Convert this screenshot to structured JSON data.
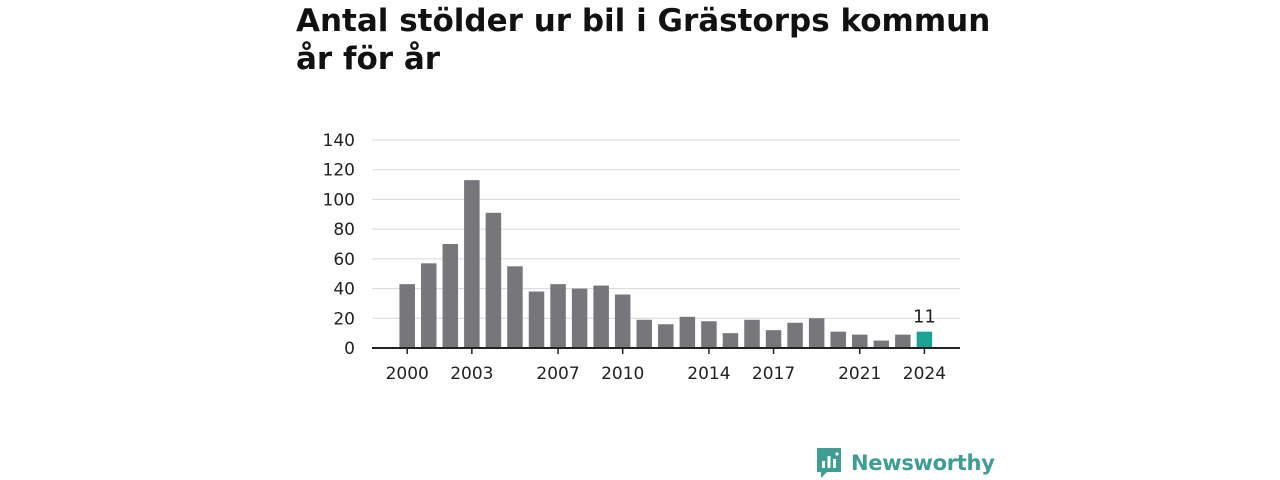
{
  "title_line1": "Antal stölder ur bil i Grästorps kommun",
  "title_line2": "år för år",
  "brand": {
    "name": "Newsworthy",
    "icon": "newsworthy-logo-icon",
    "color": "#3e9e93"
  },
  "chart_data": {
    "type": "bar",
    "categories": [
      "2000",
      "2001",
      "2002",
      "2003",
      "2004",
      "2005",
      "2006",
      "2007",
      "2008",
      "2009",
      "2010",
      "2011",
      "2012",
      "2013",
      "2014",
      "2015",
      "2016",
      "2017",
      "2018",
      "2019",
      "2020",
      "2021",
      "2022",
      "2023",
      "2024"
    ],
    "values": [
      43,
      57,
      70,
      113,
      91,
      55,
      38,
      43,
      40,
      42,
      36,
      19,
      16,
      21,
      18,
      10,
      19,
      12,
      17,
      20,
      11,
      9,
      5,
      9,
      11
    ],
    "x_tick_labels": [
      "2000",
      "2003",
      "2007",
      "2010",
      "2014",
      "2017",
      "2021",
      "2024"
    ],
    "y_ticks": [
      0,
      20,
      40,
      60,
      80,
      100,
      120,
      140
    ],
    "ylim": [
      0,
      140
    ],
    "grid": true,
    "highlight": {
      "category": "2024",
      "label": "11",
      "color": "#1aa394"
    },
    "bar_color": "#77767b",
    "xlabel": "",
    "ylabel": ""
  }
}
